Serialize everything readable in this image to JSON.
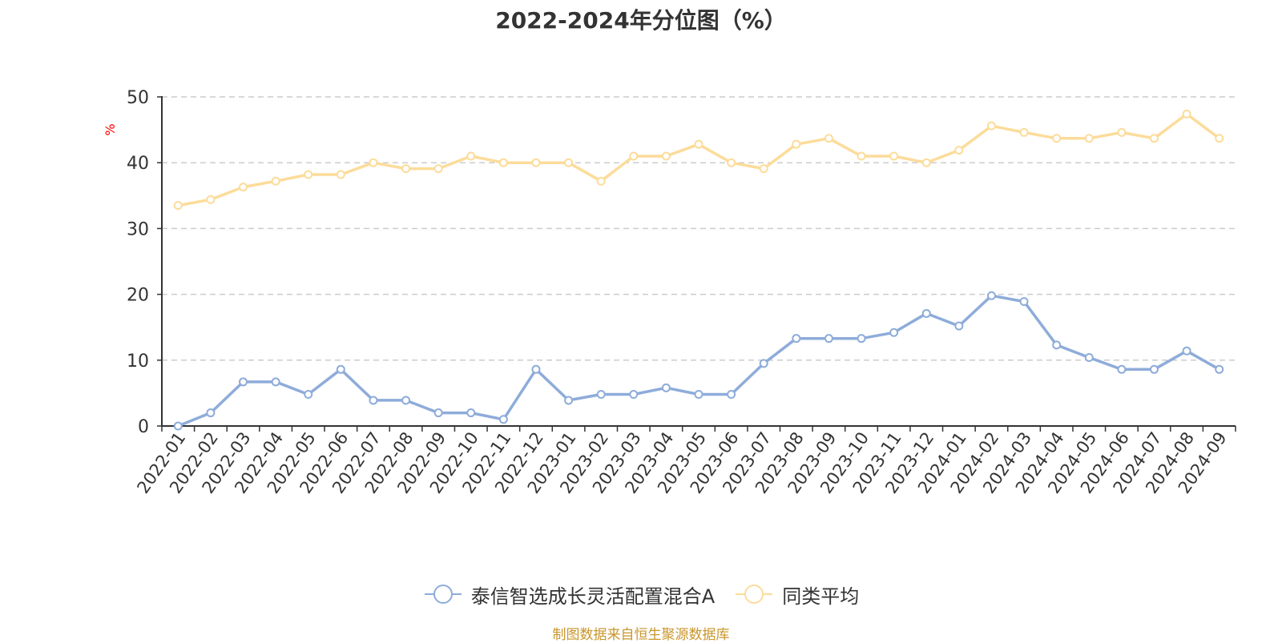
{
  "chart_data": {
    "type": "line",
    "title": "2022-2024年分位图（%）",
    "ylabel": "%",
    "ylim": [
      0,
      50
    ],
    "yticks": [
      0,
      10,
      20,
      30,
      40,
      50
    ],
    "grid": true,
    "legend_position": "bottom-center",
    "categories": [
      "2022-01",
      "2022-02",
      "2022-03",
      "2022-04",
      "2022-05",
      "2022-06",
      "2022-07",
      "2022-08",
      "2022-09",
      "2022-10",
      "2022-11",
      "2022-12",
      "2023-01",
      "2023-02",
      "2023-03",
      "2023-04",
      "2023-05",
      "2023-06",
      "2023-07",
      "2023-08",
      "2023-09",
      "2023-10",
      "2023-11",
      "2023-12",
      "2024-01",
      "2024-02",
      "2024-03",
      "2024-04",
      "2024-05",
      "2024-06",
      "2024-07",
      "2024-08",
      "2024-09"
    ],
    "series": [
      {
        "name": "泰信智选成长灵活配置混合A",
        "color": "#8eacda",
        "values": [
          0,
          2,
          6.7,
          6.7,
          4.8,
          8.6,
          3.9,
          3.9,
          2,
          2,
          1,
          8.6,
          3.9,
          4.8,
          4.8,
          5.8,
          4.8,
          4.8,
          9.5,
          13.3,
          13.3,
          13.3,
          14.2,
          17.1,
          15.2,
          19.8,
          18.9,
          12.3,
          10.4,
          8.6,
          8.6,
          11.4,
          8.6
        ]
      },
      {
        "name": "同类平均",
        "color": "#fcdc9a",
        "values": [
          33.5,
          34.4,
          36.3,
          37.2,
          38.2,
          38.2,
          40,
          39.1,
          39.1,
          41,
          40,
          40,
          40,
          37.2,
          41,
          41,
          42.8,
          40,
          39.1,
          42.8,
          43.7,
          41,
          41,
          40,
          41.9,
          45.6,
          44.6,
          43.7,
          43.7,
          44.6,
          43.7,
          47.4,
          43.7
        ]
      }
    ]
  },
  "footer": {
    "source": "制图数据来自恒生聚源数据库"
  }
}
